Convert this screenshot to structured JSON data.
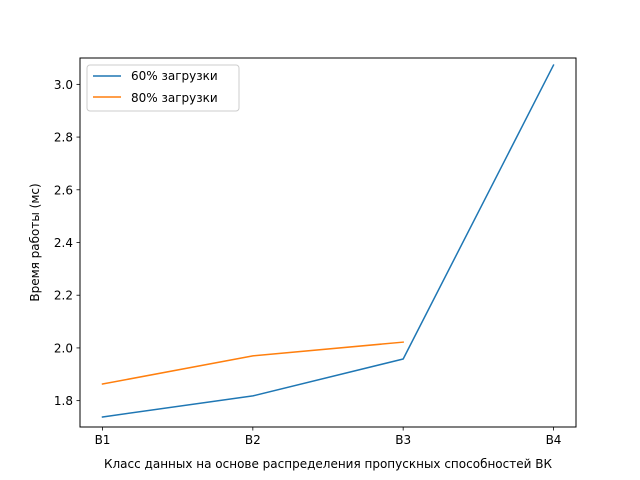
{
  "chart_data": {
    "type": "line",
    "categories": [
      "B1",
      "B2",
      "B3",
      "B4"
    ],
    "series": [
      {
        "name": "60% загрузки",
        "values": [
          1.738,
          1.818,
          1.958,
          3.073
        ],
        "color": "#1f77b4"
      },
      {
        "name": "80% загрузки",
        "values": [
          1.863,
          1.97,
          2.022,
          null
        ],
        "color": "#ff7f0e"
      }
    ],
    "title": "",
    "xlabel": "Класс данных на основе распределения пропускных способностей ВК",
    "ylabel": "Время работы (мс)",
    "ylim": [
      1.7,
      3.1
    ],
    "yticks": [
      "1.8",
      "2.0",
      "2.2",
      "2.4",
      "2.6",
      "2.8",
      "3.0"
    ],
    "grid": false,
    "legend_position": "top-left"
  }
}
